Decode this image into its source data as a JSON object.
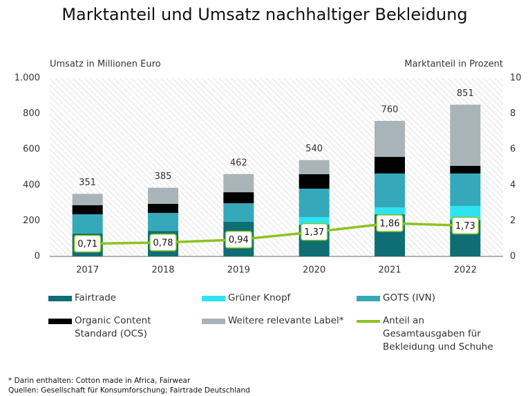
{
  "chart_data": {
    "type": "bar",
    "stacked": true,
    "title": "Marktanteil und Umsatz nachhaltiger Bekleidung",
    "y_label": "Umsatz in Millionen Euro",
    "y2_label": "Marktanteil in Prozent",
    "categories": [
      "2017",
      "2018",
      "2019",
      "2020",
      "2021",
      "2022"
    ],
    "series": [
      {
        "name": "Fairtrade",
        "color": "#0e6e74",
        "values": [
          128,
          143,
          194,
          178,
          236,
          205
        ]
      },
      {
        "name": "Grüner Knopf",
        "color": "#2de3f2",
        "values": [
          0,
          0,
          0,
          43,
          39,
          78
        ]
      },
      {
        "name": "GOTS (IVN)",
        "color": "#35a9b9",
        "values": [
          108,
          101,
          104,
          159,
          190,
          182
        ]
      },
      {
        "name": "Organic Content Standard (OCS)",
        "color": "#000000",
        "values": [
          51,
          51,
          62,
          81,
          93,
          43
        ]
      },
      {
        "name": "Weitere relevante Label*",
        "color": "#a9b4b8",
        "values": [
          64,
          90,
          102,
          79,
          202,
          343
        ]
      },
      {
        "name": "Anteil an Gesamtausgaben für Bekleidung und Schuhe",
        "type": "line",
        "axis": "y2",
        "color": "#8dc21f",
        "values": [
          0.71,
          0.78,
          0.94,
          1.37,
          1.86,
          1.73
        ],
        "value_labels": [
          "0,71",
          "0,78",
          "0,94",
          "1,37",
          "1,86",
          "1,73"
        ]
      }
    ],
    "totals": [
      351,
      385,
      462,
      540,
      760,
      851
    ],
    "ylim": [
      0,
      1000
    ],
    "yticks": [
      0,
      200,
      400,
      600,
      800,
      {
        "value": 1000,
        "label": "1.000"
      }
    ],
    "y2lim": [
      0,
      10
    ],
    "y2ticks": [
      0,
      2,
      4,
      6,
      8,
      10
    ],
    "footnotes": [
      "* Darin enthalten: Cotton made in Africa, Fairwear",
      "Quellen: Gesellschaft für Konsumforschung; Fairtrade Deutschland"
    ]
  }
}
